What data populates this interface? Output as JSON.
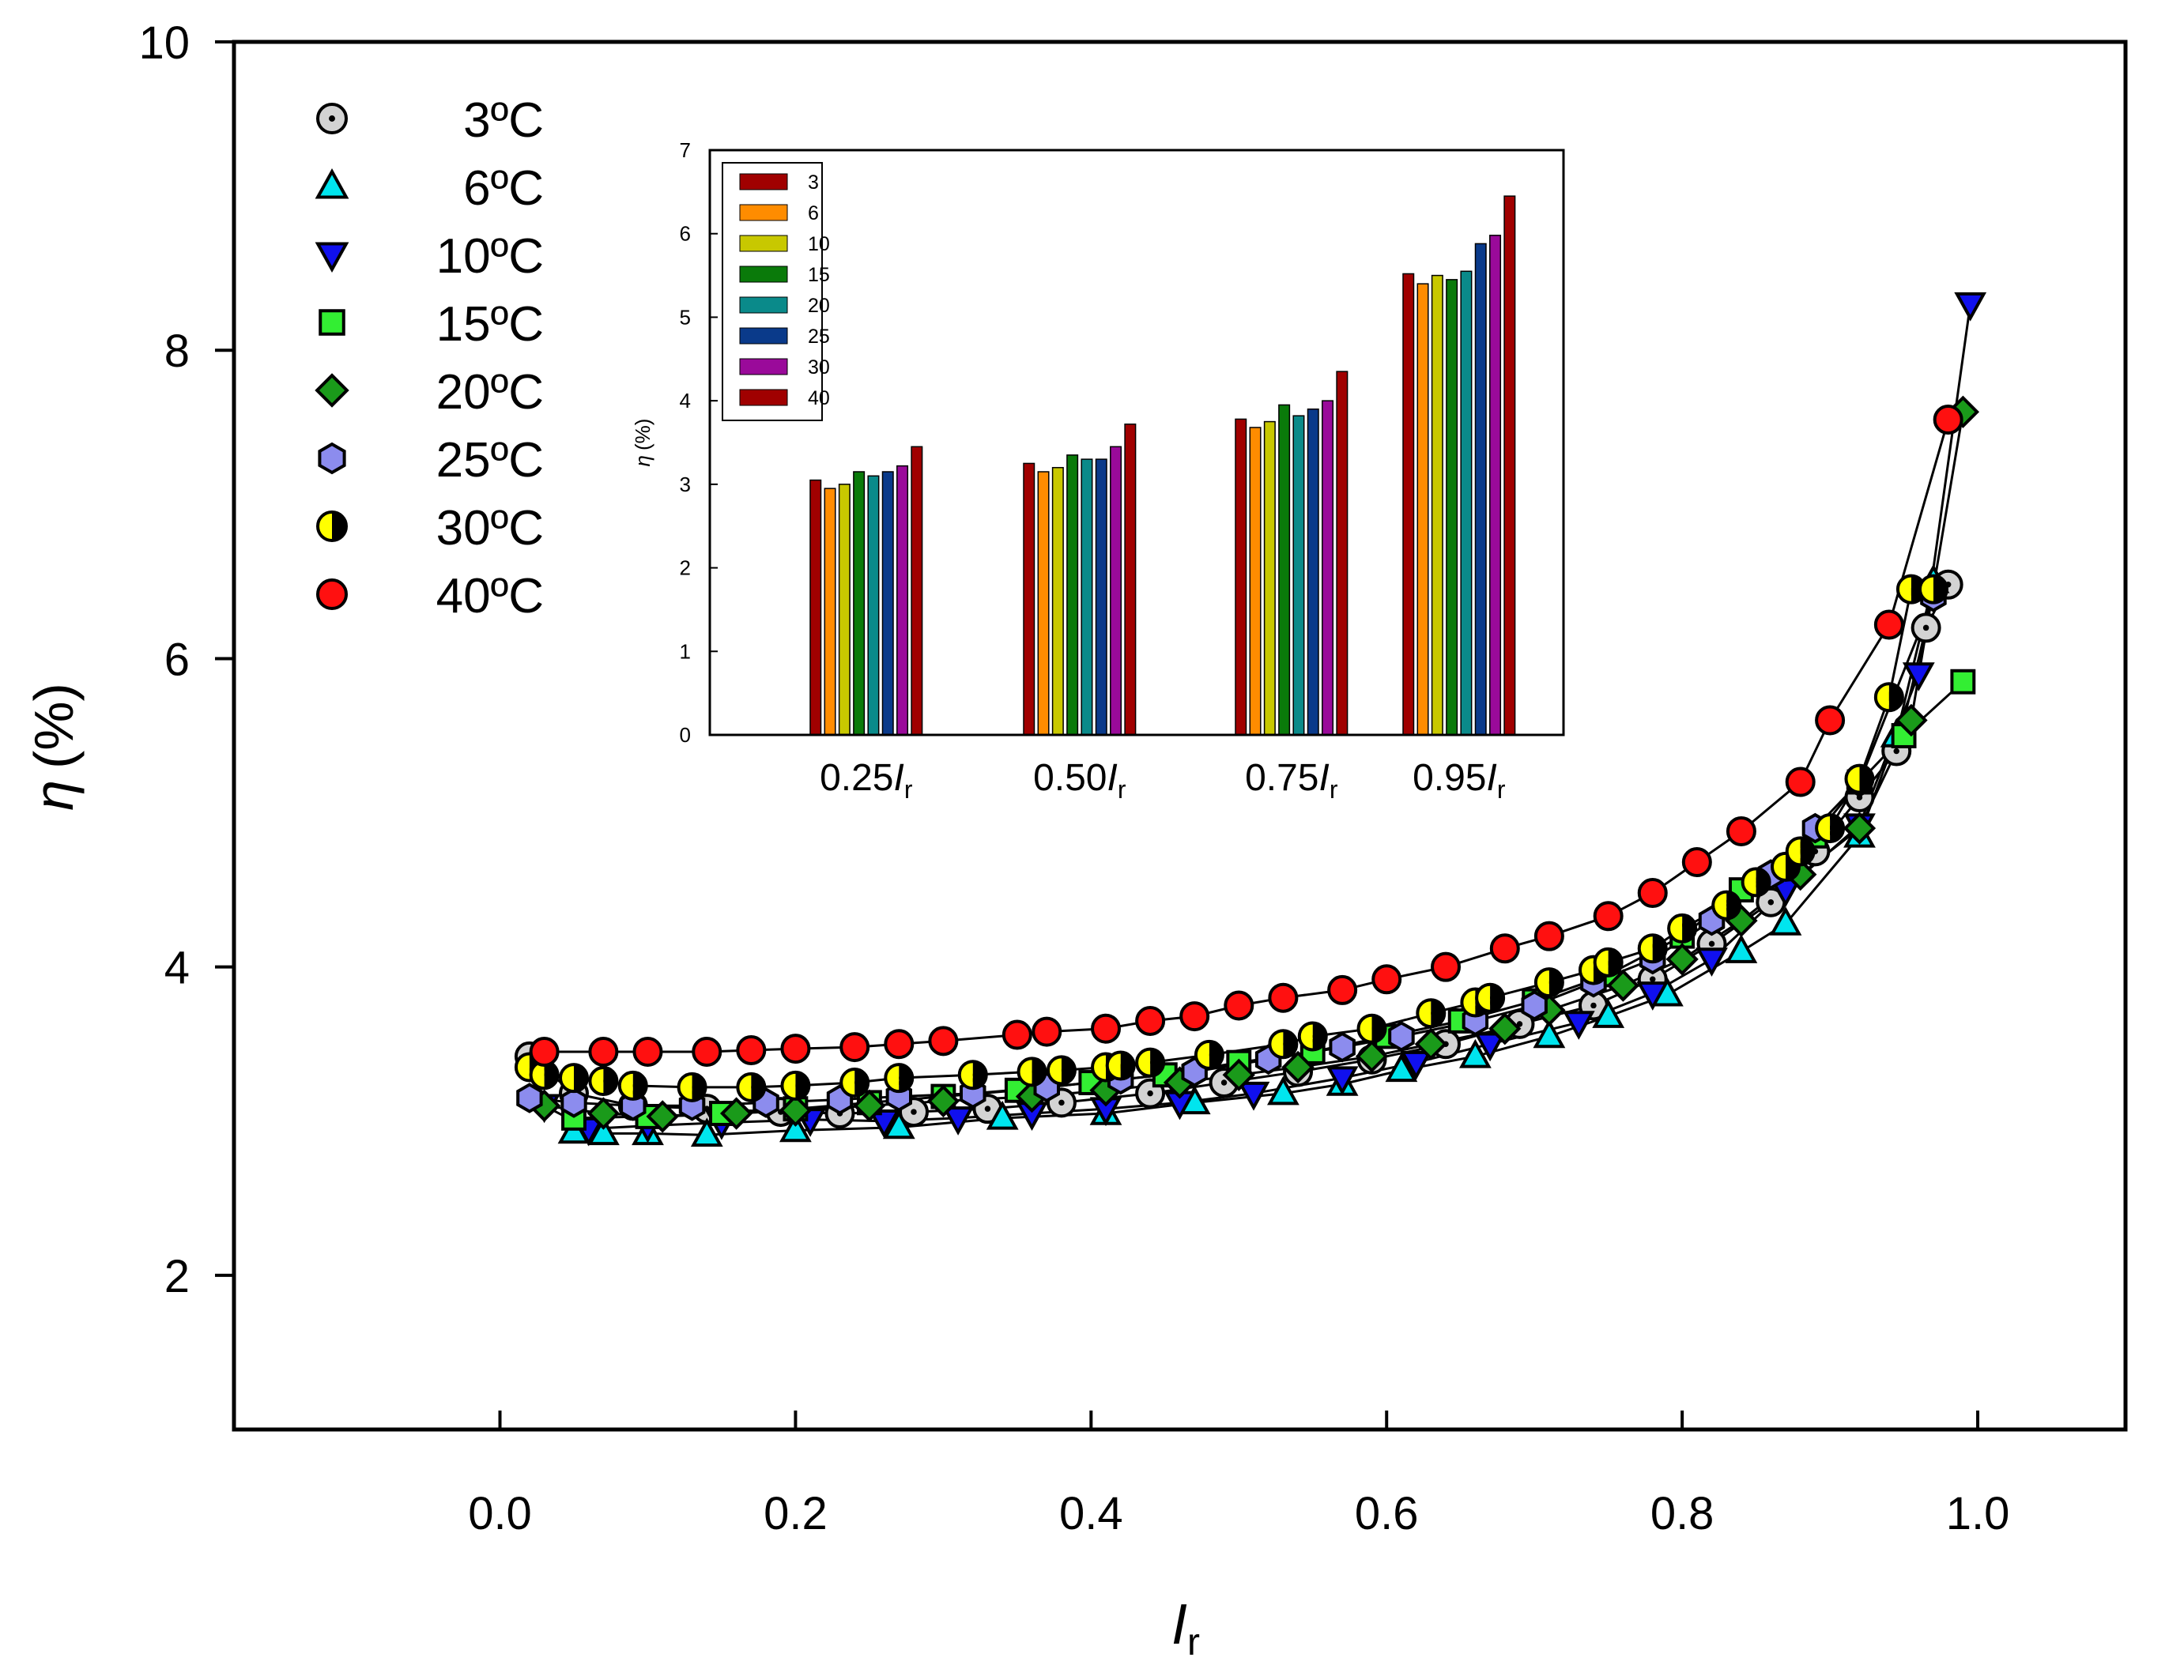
{
  "chart_data": [
    {
      "type": "scatter",
      "title": "",
      "xlabel": "I",
      "xlabel_sub": "r",
      "ylabel_symbol": "η",
      "ylabel_unit": "(%)",
      "xlim": [
        -0.18,
        1.1
      ],
      "ylim": [
        1,
        10
      ],
      "x_ticks": [
        0.0,
        0.2,
        0.4,
        0.6,
        0.8,
        1.0
      ],
      "x_tick_labels": [
        "0.0",
        "0.2",
        "0.4",
        "0.6",
        "0.8",
        "1.0"
      ],
      "y_ticks": [
        2,
        4,
        6,
        8,
        10
      ],
      "y_tick_labels": [
        "2",
        "4",
        "6",
        "8",
        "10"
      ],
      "grid": false,
      "legend_position": "top-left",
      "series": [
        {
          "name": "3ºC",
          "marker": "circle-dot",
          "color": "#d3d3d3",
          "x": [
            0.02,
            0.05,
            0.09,
            0.14,
            0.19,
            0.23,
            0.28,
            0.33,
            0.38,
            0.44,
            0.49,
            0.54,
            0.59,
            0.64,
            0.69,
            0.74,
            0.78,
            0.82,
            0.86,
            0.89,
            0.92,
            0.945,
            0.965,
            0.98
          ],
          "y": [
            3.42,
            3.18,
            3.1,
            3.08,
            3.06,
            3.05,
            3.06,
            3.08,
            3.12,
            3.18,
            3.25,
            3.32,
            3.4,
            3.5,
            3.63,
            3.75,
            3.92,
            4.15,
            4.42,
            4.75,
            5.1,
            5.4,
            6.2,
            6.48
          ]
        },
        {
          "name": "6ºC",
          "marker": "triangle-up",
          "color": "#00e5ee",
          "x": [
            0.05,
            0.07,
            0.1,
            0.14,
            0.2,
            0.27,
            0.34,
            0.41,
            0.47,
            0.53,
            0.57,
            0.61,
            0.66,
            0.71,
            0.75,
            0.79,
            0.84,
            0.87,
            0.92,
            0.945,
            0.97
          ],
          "y": [
            2.93,
            2.92,
            2.92,
            2.91,
            2.94,
            2.96,
            3.02,
            3.05,
            3.12,
            3.18,
            3.24,
            3.33,
            3.42,
            3.55,
            3.68,
            3.82,
            4.1,
            4.28,
            4.85,
            5.5,
            6.5
          ]
        },
        {
          "name": "10ºC",
          "marker": "triangle-down",
          "color": "#1010ee",
          "x": [
            0.03,
            0.06,
            0.1,
            0.15,
            0.21,
            0.26,
            0.31,
            0.36,
            0.41,
            0.46,
            0.51,
            0.57,
            0.62,
            0.67,
            0.73,
            0.78,
            0.82,
            0.87,
            0.92,
            0.96,
            0.995
          ],
          "y": [
            3.1,
            2.95,
            2.97,
            2.99,
            3.01,
            3.0,
            3.02,
            3.05,
            3.08,
            3.12,
            3.18,
            3.28,
            3.38,
            3.5,
            3.64,
            3.83,
            4.05,
            4.5,
            4.92,
            5.9,
            8.3
          ]
        },
        {
          "name": "15ºC",
          "marker": "square",
          "color": "#33ee33",
          "x": [
            0.05,
            0.1,
            0.15,
            0.2,
            0.25,
            0.3,
            0.35,
            0.4,
            0.45,
            0.5,
            0.55,
            0.6,
            0.65,
            0.7,
            0.75,
            0.8,
            0.84,
            0.89,
            0.92,
            0.95,
            0.99
          ],
          "y": [
            3.02,
            3.03,
            3.05,
            3.08,
            3.12,
            3.16,
            3.2,
            3.25,
            3.3,
            3.38,
            3.45,
            3.55,
            3.65,
            3.78,
            3.95,
            4.2,
            4.5,
            4.85,
            5.2,
            5.5,
            5.85
          ]
        },
        {
          "name": "20ºC",
          "marker": "diamond",
          "color": "#1a9a1a",
          "x": [
            0.03,
            0.07,
            0.11,
            0.16,
            0.2,
            0.25,
            0.3,
            0.36,
            0.41,
            0.46,
            0.5,
            0.54,
            0.59,
            0.63,
            0.68,
            0.71,
            0.76,
            0.8,
            0.84,
            0.88,
            0.92,
            0.955,
            0.99
          ],
          "y": [
            3.1,
            3.05,
            3.03,
            3.05,
            3.07,
            3.1,
            3.13,
            3.16,
            3.2,
            3.25,
            3.3,
            3.35,
            3.42,
            3.5,
            3.6,
            3.72,
            3.88,
            4.05,
            4.3,
            4.6,
            4.9,
            5.6,
            7.6
          ]
        },
        {
          "name": "25ºC",
          "marker": "hexagon",
          "color": "#8c8cee",
          "x": [
            0.02,
            0.05,
            0.09,
            0.13,
            0.18,
            0.23,
            0.27,
            0.32,
            0.37,
            0.42,
            0.47,
            0.52,
            0.57,
            0.61,
            0.66,
            0.7,
            0.74,
            0.78,
            0.82,
            0.86,
            0.89,
            0.92,
            0.97
          ],
          "y": [
            3.15,
            3.12,
            3.1,
            3.1,
            3.12,
            3.14,
            3.16,
            3.18,
            3.22,
            3.27,
            3.32,
            3.4,
            3.48,
            3.55,
            3.65,
            3.75,
            3.9,
            4.05,
            4.3,
            4.6,
            4.9,
            5.2,
            6.4
          ]
        },
        {
          "name": "30ºC",
          "marker": "half",
          "color": "#ffff00",
          "x": [
            0.02,
            0.03,
            0.05,
            0.07,
            0.09,
            0.13,
            0.17,
            0.2,
            0.24,
            0.27,
            0.32,
            0.36,
            0.38,
            0.41,
            0.42,
            0.44,
            0.48,
            0.53,
            0.55,
            0.59,
            0.63,
            0.66,
            0.67,
            0.71,
            0.74,
            0.75,
            0.78,
            0.8,
            0.83,
            0.85,
            0.87,
            0.88,
            0.9,
            0.92,
            0.94,
            0.955,
            0.97
          ],
          "y": [
            3.35,
            3.3,
            3.28,
            3.26,
            3.23,
            3.22,
            3.22,
            3.23,
            3.25,
            3.28,
            3.3,
            3.32,
            3.33,
            3.35,
            3.36,
            3.38,
            3.43,
            3.5,
            3.55,
            3.6,
            3.7,
            3.77,
            3.8,
            3.9,
            3.98,
            4.03,
            4.12,
            4.25,
            4.4,
            4.55,
            4.65,
            4.75,
            4.9,
            5.22,
            5.75,
            6.45,
            6.45
          ]
        },
        {
          "name": "40ºC",
          "marker": "circle",
          "color": "#ff1010",
          "x": [
            0.03,
            0.07,
            0.1,
            0.14,
            0.17,
            0.2,
            0.24,
            0.27,
            0.3,
            0.35,
            0.37,
            0.41,
            0.44,
            0.47,
            0.5,
            0.53,
            0.57,
            0.6,
            0.64,
            0.68,
            0.71,
            0.75,
            0.78,
            0.81,
            0.84,
            0.88,
            0.9,
            0.94,
            0.98
          ],
          "y": [
            3.45,
            3.45,
            3.45,
            3.45,
            3.46,
            3.47,
            3.48,
            3.5,
            3.52,
            3.56,
            3.58,
            3.6,
            3.65,
            3.68,
            3.75,
            3.8,
            3.85,
            3.92,
            4.0,
            4.12,
            4.2,
            4.33,
            4.48,
            4.68,
            4.88,
            5.2,
            5.6,
            6.22,
            7.55
          ]
        }
      ]
    },
    {
      "type": "bar",
      "title": "",
      "xlabel": "",
      "ylabel_symbol": "η",
      "ylabel_unit": "(%)",
      "ylim": [
        0,
        7
      ],
      "y_ticks": [
        0,
        1,
        2,
        3,
        4,
        5,
        6,
        7
      ],
      "y_tick_labels": [
        "0",
        "1",
        "2",
        "3",
        "4",
        "5",
        "6",
        "7"
      ],
      "category_labels": [
        {
          "value": "0.25",
          "symbol": "I",
          "sub": "r"
        },
        {
          "value": "0.50",
          "symbol": "I",
          "sub": "r"
        },
        {
          "value": "0.75",
          "symbol": "I",
          "sub": "r"
        },
        {
          "value": "0.95",
          "symbol": "I",
          "sub": "r"
        }
      ],
      "legend_position": "top-left",
      "series": [
        {
          "name": "3",
          "color": "#a00000",
          "values": [
            3.05,
            3.25,
            3.78,
            5.52
          ]
        },
        {
          "name": "6",
          "color": "#ff8c00",
          "values": [
            2.95,
            3.15,
            3.68,
            5.4
          ]
        },
        {
          "name": "10",
          "color": "#c8c800",
          "values": [
            3.0,
            3.2,
            3.75,
            5.5
          ]
        },
        {
          "name": "15",
          "color": "#0a7a0a",
          "values": [
            3.15,
            3.35,
            3.95,
            5.45
          ]
        },
        {
          "name": "20",
          "color": "#0a8a8a",
          "values": [
            3.1,
            3.3,
            3.82,
            5.55
          ]
        },
        {
          "name": "25",
          "color": "#0a3a8a",
          "values": [
            3.15,
            3.3,
            3.9,
            5.88
          ]
        },
        {
          "name": "30",
          "color": "#9a0a9a",
          "values": [
            3.22,
            3.45,
            4.0,
            5.98
          ]
        },
        {
          "name": "40",
          "color": "#a00000",
          "values": [
            3.45,
            3.72,
            4.35,
            6.45
          ]
        }
      ]
    }
  ]
}
